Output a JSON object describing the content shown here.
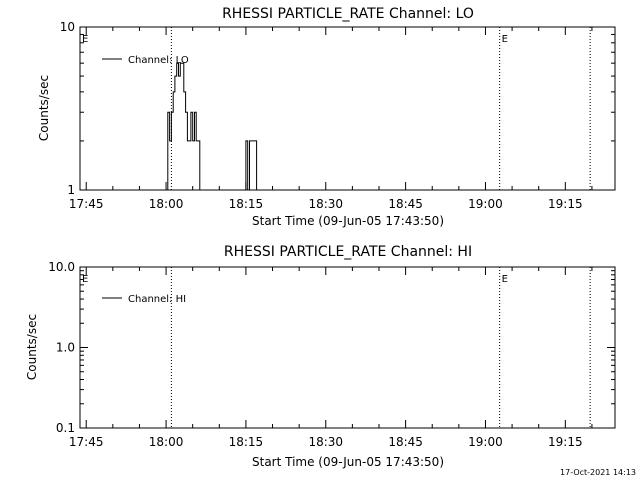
{
  "chart_data": [
    {
      "type": "line",
      "title": "RHESSI PARTICLE_RATE Channel: LO",
      "xlabel": "Start Time (09-Jun-05 17:43:50)",
      "ylabel": "Counts/sec",
      "yscale": "log",
      "ylim": [
        1,
        10
      ],
      "xlim": [
        "17:43:50",
        "19:24:20"
      ],
      "x_ticks": [
        "17:45",
        "18:00",
        "18:15",
        "18:30",
        "18:45",
        "19:00",
        "19:15"
      ],
      "y_ticks": [
        "1",
        "10"
      ],
      "grid": false,
      "legend": "top-left",
      "series": [
        {
          "name": "Channel: LO",
          "x": [
            "18:00:00",
            "18:00:20",
            "18:00:40",
            "18:01:00",
            "18:01:20",
            "18:01:40",
            "18:02:00",
            "18:02:20",
            "18:02:40",
            "18:03:00",
            "18:03:20",
            "18:03:40",
            "18:04:00",
            "18:04:20",
            "18:04:40",
            "18:05:00",
            "18:05:20",
            "18:05:40",
            "18:06:00",
            "18:06:20",
            "18:06:40",
            "18:07:00",
            "18:07:20",
            "18:14:40",
            "18:15:00",
            "18:15:20",
            "18:15:40",
            "18:16:00",
            "18:16:20",
            "18:16:40",
            "18:17:00",
            "18:17:20"
          ],
          "y": [
            1,
            3,
            2,
            3,
            4,
            5,
            6,
            5,
            6,
            6,
            4,
            3,
            2,
            2,
            3,
            2,
            3,
            2,
            2,
            1,
            1,
            1,
            1,
            1,
            2,
            1,
            2,
            2,
            2,
            2,
            1,
            1
          ]
        }
      ],
      "vlines": [
        "18:01:00",
        "19:02:40",
        "19:19:40"
      ],
      "markers": [
        {
          "label": "E",
          "x": "17:43:50"
        },
        {
          "label": "E",
          "x": "19:02:40"
        }
      ]
    },
    {
      "type": "line",
      "title": "RHESSI PARTICLE_RATE Channel: HI",
      "xlabel": "Start Time (09-Jun-05 17:43:50)",
      "ylabel": "Counts/sec",
      "yscale": "log",
      "ylim": [
        0.1,
        10
      ],
      "xlim": [
        "17:43:50",
        "19:24:20"
      ],
      "x_ticks": [
        "17:45",
        "18:00",
        "18:15",
        "18:30",
        "18:45",
        "19:00",
        "19:15"
      ],
      "y_ticks": [
        "0.1",
        "1.0",
        "10.0"
      ],
      "grid": false,
      "legend": "top-left",
      "series": [
        {
          "name": "Channel: HI",
          "x": [],
          "y": []
        }
      ],
      "vlines": [
        "18:01:00",
        "19:02:40",
        "19:19:40"
      ],
      "markers": [
        {
          "label": "E",
          "x": "17:43:50"
        },
        {
          "label": "E",
          "x": "19:02:40"
        }
      ]
    }
  ],
  "footer": {
    "timestamp": "17-Oct-2021 14:13"
  }
}
